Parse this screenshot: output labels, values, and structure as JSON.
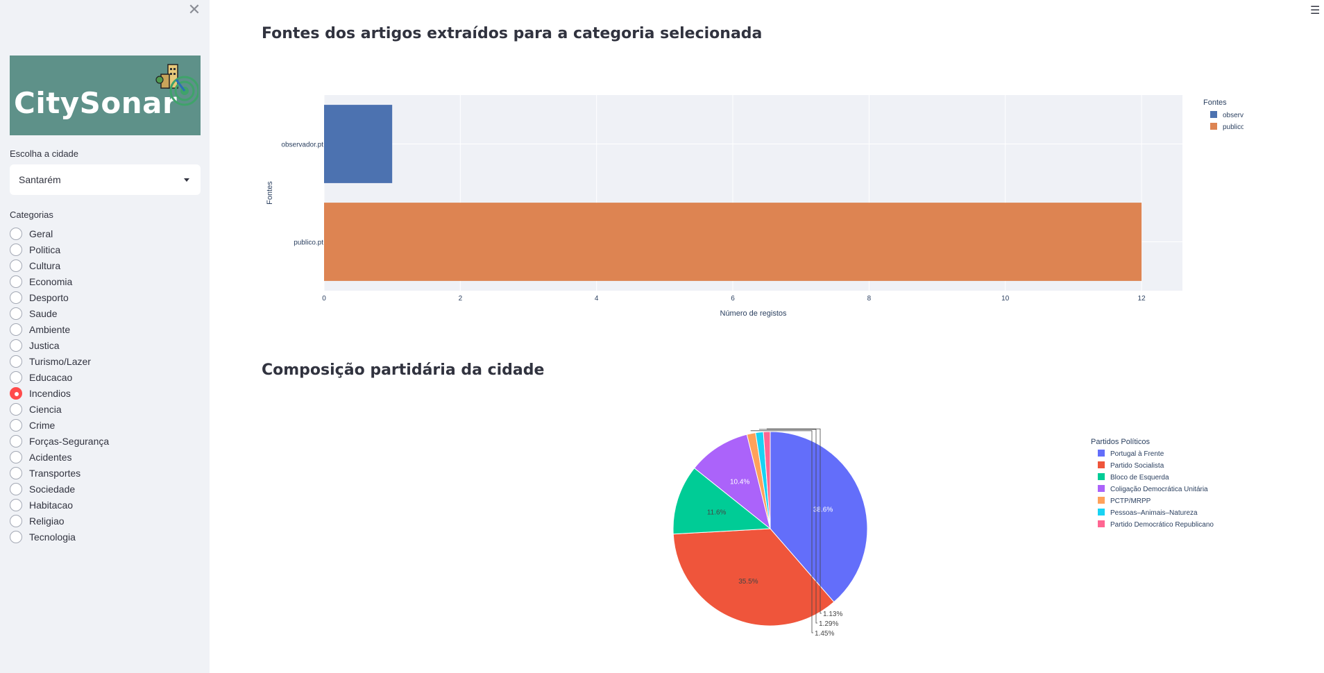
{
  "sidebar": {
    "close_icon": "close-icon",
    "logo_text": "CitySonar",
    "city_label": "Escolha a cidade",
    "city_value": "Santarém",
    "categories_label": "Categorias",
    "categories": [
      "Geral",
      "Politica",
      "Cultura",
      "Economia",
      "Desporto",
      "Saude",
      "Ambiente",
      "Justica",
      "Turismo/Lazer",
      "Educacao",
      "Incendios",
      "Ciencia",
      "Crime",
      "Forças-Segurança",
      "Acidentes",
      "Transportes",
      "Sociedade",
      "Habitacao",
      "Religiao",
      "Tecnologia"
    ],
    "selected_category": "Incendios"
  },
  "main": {
    "menu_icon": "hamburger-menu-icon",
    "title_sources": "Fontes dos artigos extraídos para a categoria selecionada",
    "title_parties": "Composição partidária da cidade"
  },
  "chart_data": [
    {
      "type": "bar",
      "orientation": "horizontal",
      "categories": [
        "observador.pt",
        "publico.pt"
      ],
      "values": [
        1,
        12
      ],
      "colors": [
        "#4c72b0",
        "#dd8452"
      ],
      "xlabel": "Número de registos",
      "ylabel": "Fontes",
      "xlim": [
        0,
        12.6
      ],
      "xticks": [
        0,
        2,
        4,
        6,
        8,
        10,
        12
      ],
      "legend_title": "Fontes",
      "legend": [
        "observador.pt",
        "publico.pt"
      ],
      "grid": true,
      "legend_position": "right"
    },
    {
      "type": "pie",
      "labels": [
        "Portugal à Frente",
        "Partido Socialista",
        "Bloco de Esquerda",
        "Coligação Democrática Unitária",
        "PCTP/MRPP",
        "Pessoas–Animais–Natureza",
        "Partido Democrático Republicano"
      ],
      "values": [
        38.6,
        35.5,
        11.6,
        10.4,
        1.45,
        1.29,
        1.13
      ],
      "value_labels": [
        "38.6%",
        "35.5%",
        "11.6%",
        "10.4%",
        "1.45%",
        "1.29%",
        "1.13%"
      ],
      "colors": [
        "#636efa",
        "#ef553b",
        "#00cc96",
        "#ab63fa",
        "#ffa15a",
        "#19d3f3",
        "#ff6692"
      ],
      "legend_title": "Partidos Políticos",
      "legend_position": "right"
    }
  ]
}
